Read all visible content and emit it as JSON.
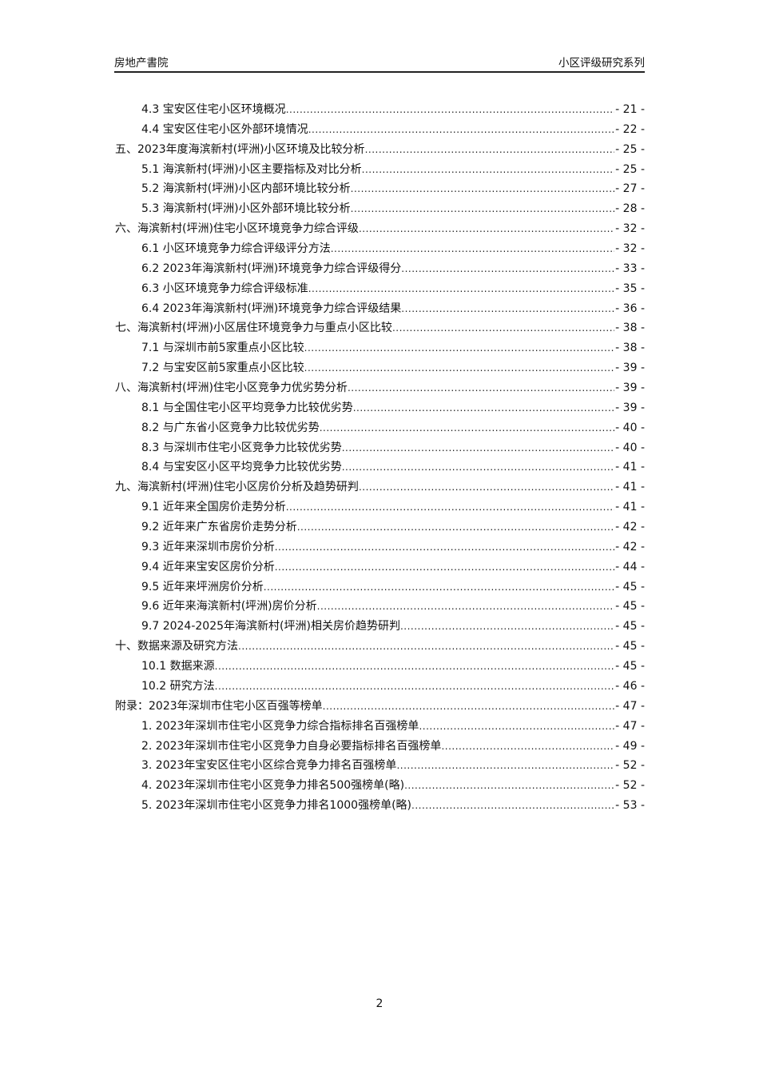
{
  "header": {
    "left": "房地产書院",
    "right": "小区评级研究系列"
  },
  "toc": [
    {
      "level": 2,
      "title": "4.3 宝安区住宅小区环境概况",
      "page": "- 21 -"
    },
    {
      "level": 2,
      "title": "4.4 宝安区住宅小区外部环境情况",
      "page": "- 22 -"
    },
    {
      "level": 1,
      "title": "五、2023年度海滨新村(坪洲)小区环境及比较分析",
      "page": "- 25 -"
    },
    {
      "level": 2,
      "title": "5.1 海滨新村(坪洲)小区主要指标及对比分析",
      "page": "- 25 -"
    },
    {
      "level": 2,
      "title": "5.2 海滨新村(坪洲)小区内部环境比较分析",
      "page": "- 27 -"
    },
    {
      "level": 2,
      "title": "5.3 海滨新村(坪洲)小区外部环境比较分析",
      "page": "- 28 -"
    },
    {
      "level": 1,
      "title": "六、海滨新村(坪洲)住宅小区环境竞争力综合评级",
      "page": "- 32 -"
    },
    {
      "level": 2,
      "title": "6.1 小区环境竞争力综合评级评分方法",
      "page": "- 32 -"
    },
    {
      "level": 2,
      "title": "6.2 2023年海滨新村(坪洲)环境竞争力综合评级得分",
      "page": "- 33 -"
    },
    {
      "level": 2,
      "title": "6.3 小区环境竞争力综合评级标准",
      "page": "- 35 -"
    },
    {
      "level": 2,
      "title": "6.4 2023年海滨新村(坪洲)环境竞争力综合评级结果",
      "page": "- 36 -"
    },
    {
      "level": 1,
      "title": "七、海滨新村(坪洲)小区居住环境竞争力与重点小区比较",
      "page": "- 38 -"
    },
    {
      "level": 2,
      "title": "7.1 与深圳市前5家重点小区比较",
      "page": "- 38 -"
    },
    {
      "level": 2,
      "title": "7.2 与宝安区前5家重点小区比较",
      "page": "- 39 -"
    },
    {
      "level": 1,
      "title": "八、海滨新村(坪洲)住宅小区竞争力优劣势分析",
      "page": "- 39 -"
    },
    {
      "level": 2,
      "title": "8.1 与全国住宅小区平均竞争力比较优劣势",
      "page": "- 39 -"
    },
    {
      "level": 2,
      "title": "8.2 与广东省小区竞争力比较优劣势",
      "page": "- 40 -"
    },
    {
      "level": 2,
      "title": "8.3 与深圳市住宅小区竞争力比较优劣势",
      "page": "- 40 -"
    },
    {
      "level": 2,
      "title": "8.4 与宝安区小区平均竞争力比较优劣势",
      "page": "- 41 -"
    },
    {
      "level": 1,
      "title": "九、海滨新村(坪洲)住宅小区房价分析及趋势研判",
      "page": "- 41 -"
    },
    {
      "level": 2,
      "title": "9.1 近年来全国房价走势分析",
      "page": "- 41 -"
    },
    {
      "level": 2,
      "title": "9.2 近年来广东省房价走势分析",
      "page": "- 42 -"
    },
    {
      "level": 2,
      "title": "9.3 近年来深圳市房价分析",
      "page": "- 42 -"
    },
    {
      "level": 2,
      "title": "9.4 近年来宝安区房价分析",
      "page": "- 44 -"
    },
    {
      "level": 2,
      "title": "9.5 近年来坪洲房价分析",
      "page": "- 45 -"
    },
    {
      "level": 2,
      "title": "9.6 近年来海滨新村(坪洲)房价分析",
      "page": "- 45 -"
    },
    {
      "level": 2,
      "title": "9.7 2024-2025年海滨新村(坪洲)相关房价趋势研判",
      "page": "- 45 -"
    },
    {
      "level": 1,
      "title": "十、数据来源及研究方法",
      "page": "- 45 -"
    },
    {
      "level": 2,
      "title": "10.1 数据来源",
      "page": "- 45 -"
    },
    {
      "level": 2,
      "title": "10.2 研究方法",
      "page": "- 46 -"
    },
    {
      "level": 1,
      "title": "附录：2023年深圳市住宅小区百强等榜单",
      "page": "- 47 -"
    },
    {
      "level": 2,
      "title": "1. 2023年深圳市住宅小区竞争力综合指标排名百强榜单",
      "page": "- 47 -"
    },
    {
      "level": 2,
      "title": "2. 2023年深圳市住宅小区竞争力自身必要指标排名百强榜单",
      "page": "- 49 -"
    },
    {
      "level": 2,
      "title": "3. 2023年宝安区住宅小区综合竞争力排名百强榜单",
      "page": "- 52 -"
    },
    {
      "level": 2,
      "title": "4. 2023年深圳市住宅小区竞争力排名500强榜单(略)",
      "page": "- 52 -"
    },
    {
      "level": 2,
      "title": "5. 2023年深圳市住宅小区竞争力排名1000强榜单(略)",
      "page": "- 53 -"
    }
  ],
  "footer": {
    "page_number": "2"
  }
}
